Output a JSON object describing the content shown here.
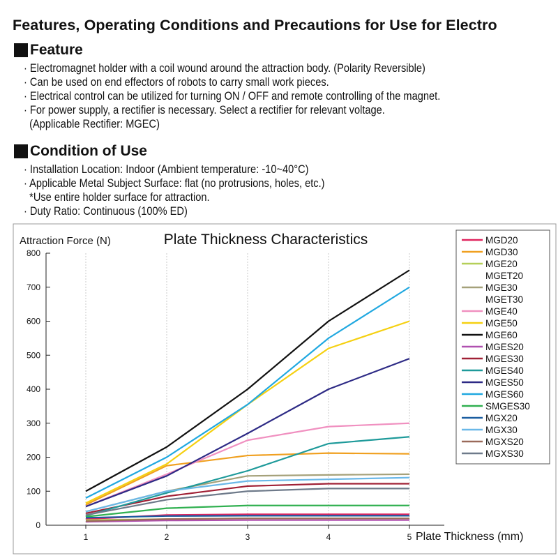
{
  "page": {
    "title": "Features, Operating Conditions and Precautions for Use for Electro"
  },
  "feature": {
    "heading": "Feature",
    "items": [
      "· Electromagnet holder with a coil wound around the attraction body. (Polarity Reversible)",
      "· Can be used on end effectors of robots to carry small work pieces.",
      "· Electrical control can be utilized for turning ON / OFF and remote controlling of the magnet.",
      "· For power supply, a rectifier is necessary. Select a rectifier for relevant voltage.",
      "  (Applicable Rectifier: MGEC)"
    ]
  },
  "condition": {
    "heading": "Condition of Use",
    "items": [
      "· Installation Location: Indoor (Ambient temperature: -10~40°C)",
      "· Applicable Metal Subject Surface: flat (no protrusions, holes, etc.)",
      "  *Use entire holder surface for attraction.",
      "· Duty Ratio: Continuous (100% ED)"
    ]
  },
  "chart_data": {
    "type": "line",
    "title": "Plate Thickness Characteristics",
    "xlabel": "Plate Thickness (mm)",
    "ylabel": "Attraction Force (N)",
    "x": [
      1,
      2,
      3,
      4,
      5
    ],
    "xlim": [
      1,
      5
    ],
    "ylim": [
      0,
      800
    ],
    "yticks": [
      0,
      100,
      200,
      300,
      400,
      500,
      600,
      700,
      800
    ],
    "xticks": [
      1,
      2,
      3,
      4,
      5
    ],
    "grid": "vertical",
    "legend_position": "right",
    "series": [
      {
        "name": "MGD20",
        "color": "#e0245e",
        "values": [
          18,
          30,
          32,
          32,
          32
        ]
      },
      {
        "name": "MGD30",
        "color": "#f0a020",
        "values": [
          60,
          175,
          205,
          212,
          210
        ]
      },
      {
        "name": "MGE20\nMGET20",
        "color": "#b5cf58",
        "values": [
          15,
          18,
          20,
          20,
          20
        ]
      },
      {
        "name": "MGE30\nMGET30",
        "color": "#a5a17a",
        "values": [
          40,
          100,
          145,
          148,
          150
        ]
      },
      {
        "name": "MGE40",
        "color": "#f090c0",
        "values": [
          55,
          150,
          250,
          290,
          300
        ]
      },
      {
        "name": "MGE50",
        "color": "#f5d010",
        "values": [
          65,
          180,
          355,
          520,
          600
        ]
      },
      {
        "name": "MGE60",
        "color": "#111111",
        "values": [
          100,
          230,
          400,
          600,
          750
        ]
      },
      {
        "name": "MGES20",
        "color": "#b050b0",
        "values": [
          10,
          14,
          15,
          15,
          15
        ]
      },
      {
        "name": "MGES30",
        "color": "#a02035",
        "values": [
          35,
          85,
          115,
          122,
          122
        ]
      },
      {
        "name": "MGES40",
        "color": "#1e9a9a",
        "values": [
          28,
          95,
          160,
          240,
          260
        ]
      },
      {
        "name": "MGES50",
        "color": "#2d2a85",
        "values": [
          55,
          145,
          270,
          400,
          490
        ]
      },
      {
        "name": "MGES60",
        "color": "#20a8e0",
        "values": [
          80,
          200,
          355,
          550,
          700
        ]
      },
      {
        "name": "SMGES30",
        "color": "#30b050",
        "values": [
          25,
          50,
          58,
          58,
          58
        ]
      },
      {
        "name": "MGX20",
        "color": "#1a5da0",
        "values": [
          22,
          27,
          28,
          28,
          28
        ]
      },
      {
        "name": "MGX30",
        "color": "#6ab8e8",
        "values": [
          40,
          100,
          130,
          135,
          140
        ]
      },
      {
        "name": "MGXS20",
        "color": "#9a6a5a",
        "values": [
          12,
          18,
          20,
          20,
          20
        ]
      },
      {
        "name": "MGXS30",
        "color": "#6e7a8a",
        "values": [
          30,
          75,
          100,
          108,
          108
        ]
      }
    ]
  }
}
